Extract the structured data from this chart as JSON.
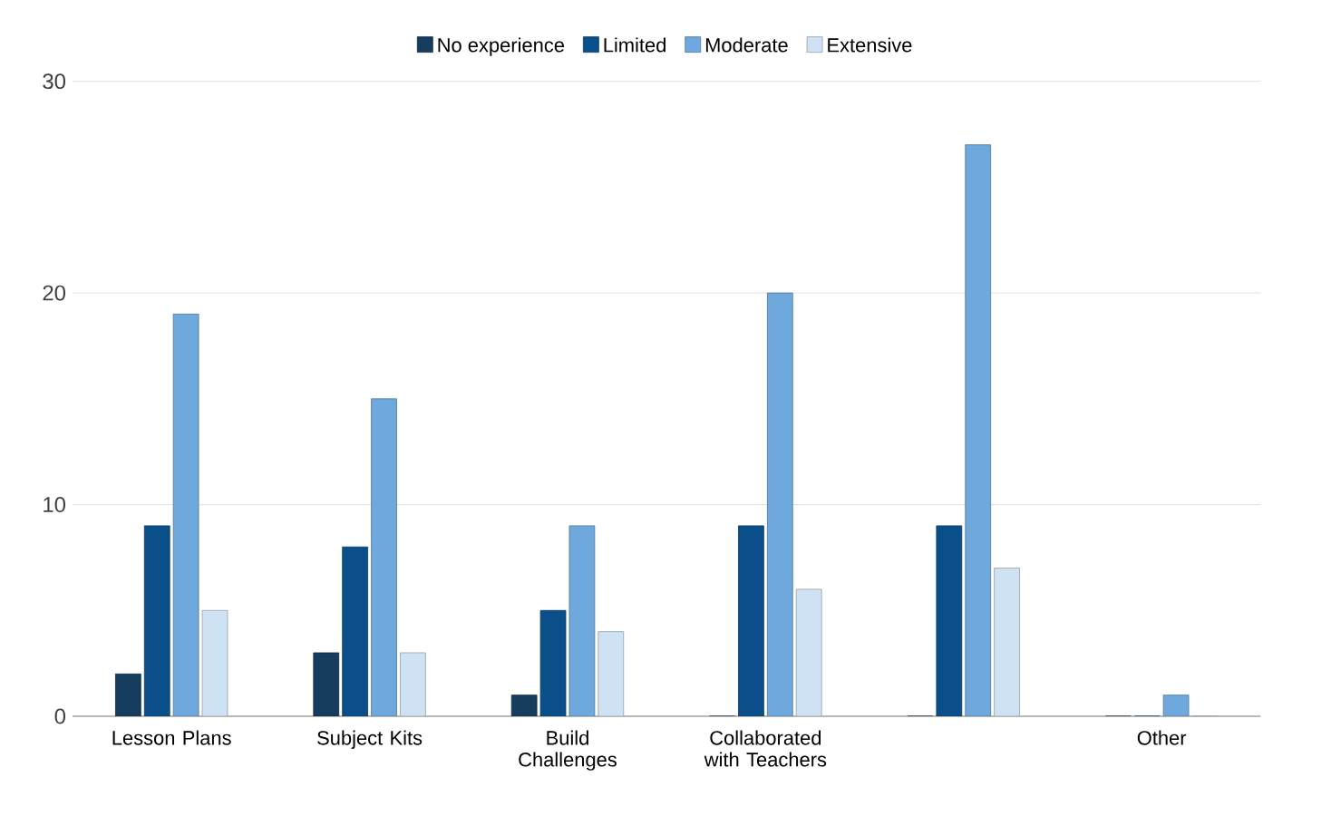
{
  "chart_data": {
    "type": "bar",
    "categories": [
      "Lesson Plans",
      "Subject Kits",
      "Build Challenges",
      "Collaborated with Teachers",
      null,
      "Other"
    ],
    "series": [
      {
        "name": "No experience",
        "color": "#163c5e",
        "values": [
          2,
          3,
          1,
          0,
          0,
          0
        ]
      },
      {
        "name": "Limited",
        "color": "#0b4f8a",
        "values": [
          9,
          8,
          5,
          9,
          9,
          0
        ]
      },
      {
        "name": "Moderate",
        "color": "#6fa8dc",
        "values": [
          19,
          15,
          9,
          20,
          27,
          1
        ]
      },
      {
        "name": "Extensive",
        "color": "#cfe2f3",
        "values": [
          5,
          3,
          4,
          6,
          7,
          0
        ]
      }
    ],
    "ylim": [
      0,
      30
    ],
    "yticks": [
      0,
      10,
      20,
      30
    ],
    "grid": "y",
    "legend": "top"
  }
}
